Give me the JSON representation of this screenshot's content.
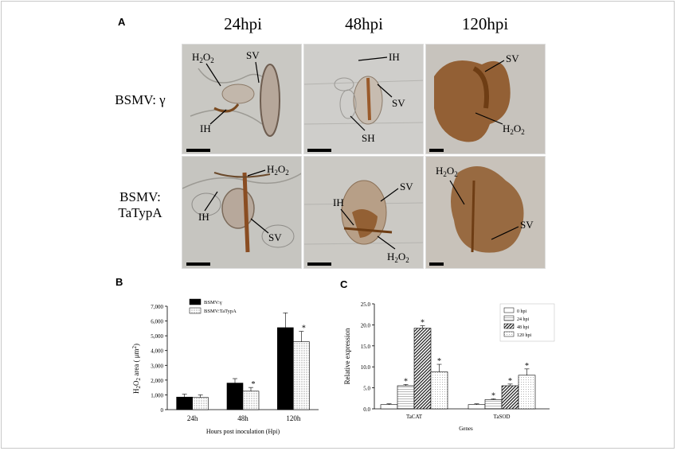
{
  "panel_letters": {
    "a": "A",
    "b": "B",
    "c": "C"
  },
  "columns": [
    "24hpi",
    "48hpi",
    "120hpi"
  ],
  "rows": [
    {
      "line1": "BSMV: γ",
      "line2": ""
    },
    {
      "line1": "BSMV:",
      "line2": "TaTypA"
    }
  ],
  "micro_labels": {
    "h2o2_h": "H",
    "h2o2_sub": "2",
    "h2o2_o": "O",
    "h2o2_sub2": "2",
    "sv": "SV",
    "ih": "IH",
    "sh": "SH"
  },
  "colors": {
    "stain": "#8a4a1a",
    "bg_micro": "#c9c8c4",
    "bar_black": "#000000"
  },
  "chart_data": [
    {
      "type": "bar",
      "categories": [
        "24h",
        "48h",
        "120h"
      ],
      "series": [
        {
          "name": "BSMV:γ",
          "values": [
            850,
            1800,
            5550
          ],
          "errors": [
            200,
            300,
            1000
          ],
          "style": "solid-black"
        },
        {
          "name": "BSMV:TaTypA",
          "values": [
            820,
            1250,
            4600
          ],
          "errors": [
            180,
            250,
            700
          ],
          "style": "dotted"
        }
      ],
      "significance": [
        "",
        "*",
        "*"
      ],
      "ylim": [
        0,
        7000
      ],
      "yticks": [
        "0",
        "1,000",
        "2,000",
        "3,000",
        "4,000",
        "5,000",
        "6,000",
        "7,000"
      ],
      "ylabel_parts": {
        "h": "H",
        "s1": "2",
        "o": "O",
        "s2": "2",
        "rest": " area ( μm",
        "sup": "2",
        "end": ")"
      },
      "xlabel": "Hours post inoculation (Hpi)"
    },
    {
      "type": "bar",
      "categories": [
        "TaCAT",
        "TaSOD"
      ],
      "series": [
        {
          "name": "0 hpi",
          "values": [
            1.0,
            1.0
          ],
          "errors": [
            0.2,
            0.2
          ],
          "style": "white"
        },
        {
          "name": "24 hpi",
          "values": [
            5.5,
            2.2
          ],
          "errors": [
            0.3,
            0.2
          ],
          "style": "hlines"
        },
        {
          "name": "48 hpi",
          "values": [
            19.2,
            5.5
          ],
          "errors": [
            0.6,
            0.4
          ],
          "style": "diag"
        },
        {
          "name": "120 hpi",
          "values": [
            8.8,
            8.0
          ],
          "errors": [
            1.8,
            1.5
          ],
          "style": "grid"
        }
      ],
      "significance": [
        [
          "",
          "*",
          "*",
          "*"
        ],
        [
          "",
          "*",
          "*",
          "*"
        ]
      ],
      "ylim": [
        0,
        25
      ],
      "yticks": [
        "0.0",
        "5.0",
        "10.0",
        "15.0",
        "20.0",
        "25.0"
      ],
      "ylabel": "Relative expression",
      "xlabel": "Genes"
    }
  ]
}
